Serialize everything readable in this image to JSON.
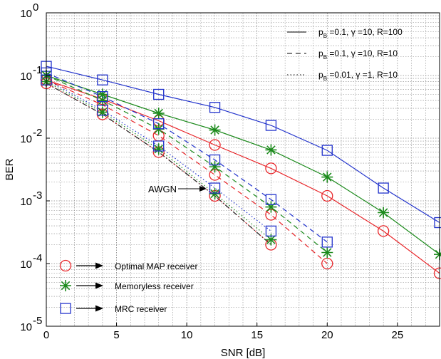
{
  "chart_data": {
    "type": "line",
    "xlabel": "SNR [dB]",
    "ylabel": "BER",
    "xlim": [
      0,
      28
    ],
    "ylim": [
      1e-05,
      1
    ],
    "yscale": "log",
    "grid": true,
    "x_ticks": [
      "0",
      "5",
      "10",
      "15",
      "20",
      "25"
    ],
    "y_ticks": [
      {
        "base": "10",
        "exp": "0"
      },
      {
        "base": "10",
        "exp": "-1"
      },
      {
        "base": "10",
        "exp": "-2"
      },
      {
        "base": "10",
        "exp": "-3"
      },
      {
        "base": "10",
        "exp": "-4"
      },
      {
        "base": "10",
        "exp": "-5"
      }
    ],
    "legend_style": [
      {
        "label": "p =0.1, γ =10, R=100",
        "sub": "B",
        "dash": "solid"
      },
      {
        "label": "p =0.1, γ =10, R=10",
        "sub": "B",
        "dash": "dashed"
      },
      {
        "label": "p =0.01, γ =1, R=10",
        "sub": "B",
        "dash": "dotted"
      }
    ],
    "legend_markers": [
      {
        "label": "Optimal MAP receiver",
        "marker": "circle",
        "color": "#e8262a"
      },
      {
        "label": "Memoryless receiver",
        "marker": "star",
        "color": "#1c8a1c"
      },
      {
        "label": "MRC receiver",
        "marker": "square",
        "color": "#2233cc"
      }
    ],
    "annotation": "AWGN",
    "series": [
      {
        "receiver": "MAP",
        "style": "solid",
        "color": "#e8262a",
        "marker": "circle",
        "x": [
          0,
          4,
          8,
          12,
          16,
          20,
          24,
          28
        ],
        "y": [
          0.085,
          0.042,
          0.019,
          0.0078,
          0.0033,
          0.0012,
          0.00033,
          7e-05
        ]
      },
      {
        "receiver": "Memoryless",
        "style": "solid",
        "color": "#1c8a1c",
        "marker": "star",
        "x": [
          0,
          4,
          8,
          12,
          16,
          20,
          24,
          28
        ],
        "y": [
          0.1,
          0.05,
          0.025,
          0.0135,
          0.0065,
          0.0024,
          0.00065,
          0.00014
        ]
      },
      {
        "receiver": "MRC",
        "style": "solid",
        "color": "#2233cc",
        "marker": "square",
        "x": [
          0,
          4,
          8,
          12,
          16,
          20,
          24,
          28
        ],
        "y": [
          0.14,
          0.085,
          0.05,
          0.031,
          0.016,
          0.0064,
          0.0016,
          0.00045
        ]
      },
      {
        "receiver": "MAP",
        "style": "dashed",
        "color": "#e8262a",
        "marker": "circle",
        "x": [
          0,
          4,
          8,
          12,
          16,
          20
        ],
        "y": [
          0.085,
          0.034,
          0.011,
          0.0026,
          0.0006,
          0.0001
        ]
      },
      {
        "receiver": "Memoryless",
        "style": "dashed",
        "color": "#1c8a1c",
        "marker": "star",
        "x": [
          0,
          4,
          8,
          12,
          16,
          20
        ],
        "y": [
          0.1,
          0.04,
          0.014,
          0.0035,
          0.0008,
          0.00015
        ]
      },
      {
        "receiver": "MRC",
        "style": "dashed",
        "color": "#2233cc",
        "marker": "square",
        "x": [
          0,
          4,
          8,
          12,
          16,
          20
        ],
        "y": [
          0.11,
          0.046,
          0.017,
          0.0045,
          0.00105,
          0.00022
        ]
      },
      {
        "receiver": "MAP",
        "style": "dotted",
        "color": "#e8262a",
        "marker": "circle",
        "x": [
          0,
          4,
          8,
          12,
          16
        ],
        "y": [
          0.075,
          0.024,
          0.006,
          0.0012,
          0.0002
        ]
      },
      {
        "receiver": "Memoryless",
        "style": "dotted",
        "color": "#1c8a1c",
        "marker": "star",
        "x": [
          0,
          4,
          8,
          12,
          16
        ],
        "y": [
          0.08,
          0.026,
          0.0067,
          0.0013,
          0.00024
        ]
      },
      {
        "receiver": "MRC",
        "style": "dotted",
        "color": "#2233cc",
        "marker": "square",
        "x": [
          0,
          4,
          8,
          12,
          16
        ],
        "y": [
          0.085,
          0.028,
          0.0075,
          0.0016,
          0.00033
        ]
      },
      {
        "receiver": "AWGN",
        "style": "dashdot",
        "color": "#222222",
        "marker": "none",
        "x": [
          0,
          4,
          8,
          12,
          16
        ],
        "y": [
          0.075,
          0.024,
          0.006,
          0.0012,
          0.0002
        ]
      }
    ]
  }
}
